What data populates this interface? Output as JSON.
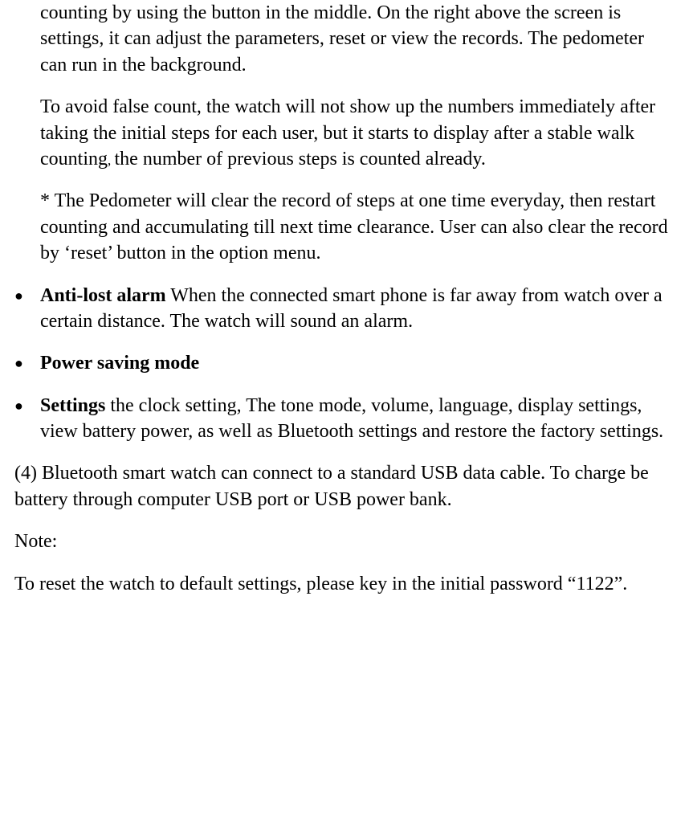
{
  "para1": {
    "text": "counting by using the button in the middle. On the right above the screen is settings, it can adjust the parameters, reset or view the records. The pedometer can run in the background."
  },
  "para2": {
    "before": " To avoid false count, the watch will not show up the numbers immediately after taking the initial steps for each user, but it starts to display after a stable walk counting",
    "comma": ", ",
    "after": "the number of previous steps is counted already."
  },
  "para3": {
    "text": "* The Pedometer will clear the record of steps at one time everyday, then restart counting and accumulating till next time clearance. User can also clear the record by ‘reset’ button in the option menu."
  },
  "bullets": {
    "marker": "●",
    "antilost": {
      "name": "Anti-lost alarm",
      "rest": " When the connected smart phone is far away from watch over a certain distance. The watch will sound an alarm."
    },
    "powersaving": {
      "name": "Power saving mode",
      "rest": ""
    },
    "settings": {
      "name": "Settings",
      "rest": " the clock setting, The tone mode, volume, language, display settings, view battery power, as well as Bluetooth settings and restore the factory settings."
    }
  },
  "para4": {
    "text": "(4) Bluetooth smart watch can connect to a standard USB data cable. To charge be battery through computer USB port or USB power bank."
  },
  "note_label": {
    "text": "Note:"
  },
  "note_body": {
    "text": "To reset the watch to default settings, please key in the initial password “1122”."
  }
}
